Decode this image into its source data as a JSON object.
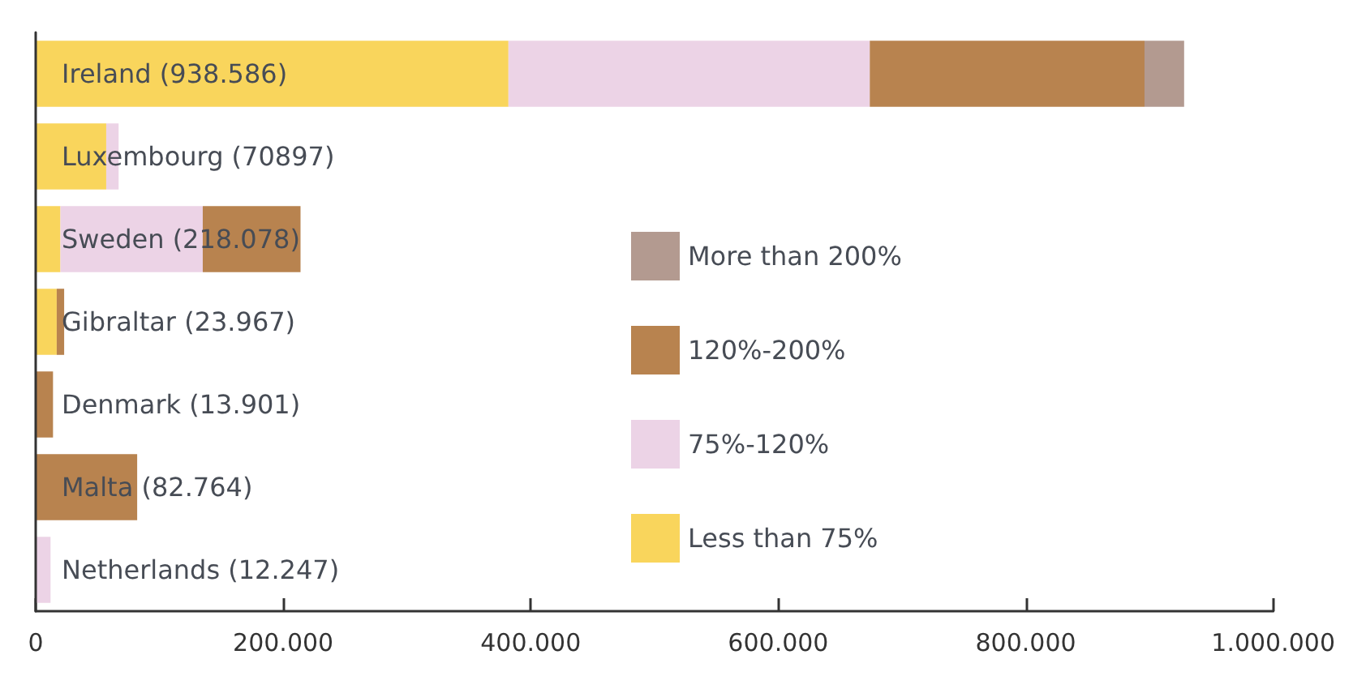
{
  "chart_data": {
    "type": "bar",
    "orientation": "horizontal",
    "stacked": true,
    "categories": [
      "Ireland (938.586)",
      "Luxembourg (70897)",
      "Sweden (218.078)",
      "Gibraltar (23.967)",
      "Denmark (13.901)",
      "Malta (82.764)",
      "Netherlands (12.247)"
    ],
    "series": [
      {
        "name": "Less than 75%",
        "color": "#f9d55c",
        "values": [
          382000,
          57000,
          20000,
          17000,
          null,
          null,
          null
        ]
      },
      {
        "name": "75%-120%",
        "color": "#ecd3e6",
        "values": [
          292000,
          10000,
          115000,
          null,
          null,
          null,
          12000
        ]
      },
      {
        "name": "120%-200%",
        "color": "#b8834f",
        "values": [
          222000,
          null,
          79000,
          6000,
          14000,
          82000,
          null
        ]
      },
      {
        "name": "More than 200%",
        "color": "#b39a90",
        "values": [
          32000,
          null,
          null,
          null,
          null,
          null,
          null
        ]
      }
    ],
    "xlim": [
      0,
      1000000
    ],
    "xticks": [
      0,
      {
        "value": 200000,
        "label": "200.000"
      },
      {
        "value": 400000,
        "label": "400.000"
      },
      {
        "value": 600000,
        "label": "600.000"
      },
      {
        "value": 800000,
        "label": "800.000"
      },
      {
        "value": 1000000,
        "label": "1.000.000"
      }
    ],
    "grid": false,
    "legend": "right"
  }
}
